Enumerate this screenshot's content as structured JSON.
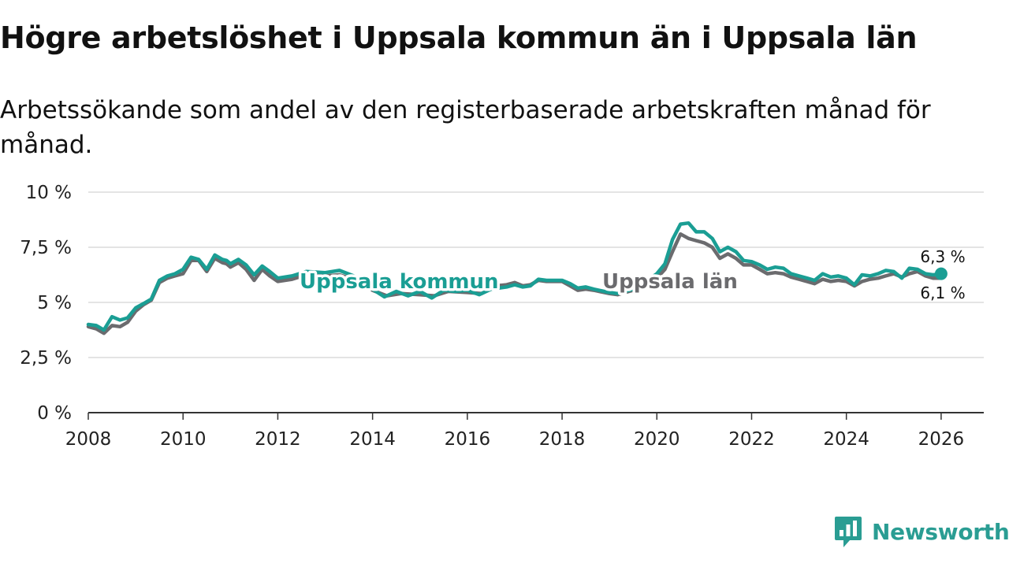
{
  "title": "Högre arbetslöshet i Uppsala kommun än i Uppsala län",
  "subtitle": "Arbetssökande som andel av den registerbaserade arbetskraften månad för månad.",
  "brand": {
    "name": "Newsworthy",
    "color": "#2a9d93",
    "icon": "chart-bubble-icon"
  },
  "colors": {
    "kommun": "#1a9e94",
    "lan": "#6b6b6e",
    "grid": "#dcdcdc",
    "axis": "#333333"
  },
  "chart_data": {
    "type": "line",
    "title": "Högre arbetslöshet i Uppsala kommun än i Uppsala län",
    "xlabel": "",
    "ylabel": "",
    "ylim": [
      0,
      10
    ],
    "xlim": [
      2008,
      2026.9
    ],
    "y_ticks": [
      0,
      2.5,
      5,
      7.5,
      10
    ],
    "y_tick_labels": [
      "0 %",
      "2,5 %",
      "5 %",
      "7,5 %",
      "10 %"
    ],
    "x_ticks": [
      2008,
      2010,
      2012,
      2014,
      2016,
      2018,
      2020,
      2022,
      2024,
      2026
    ],
    "x_tick_labels": [
      "2008",
      "2010",
      "2012",
      "2014",
      "2016",
      "2018",
      "2020",
      "2022",
      "2024",
      "2026"
    ],
    "grid": true,
    "legend": "inline",
    "series": [
      {
        "name": "Uppsala län",
        "color": "#6b6b6e",
        "label": "Uppsala län",
        "end_label": "6,1 %",
        "points": [
          [
            2008.0,
            3.9
          ],
          [
            2008.17,
            3.8
          ],
          [
            2008.33,
            3.6
          ],
          [
            2008.5,
            3.95
          ],
          [
            2008.67,
            3.9
          ],
          [
            2008.83,
            4.1
          ],
          [
            2009.0,
            4.6
          ],
          [
            2009.17,
            4.9
          ],
          [
            2009.33,
            5.1
          ],
          [
            2009.5,
            5.9
          ],
          [
            2009.67,
            6.1
          ],
          [
            2009.83,
            6.2
          ],
          [
            2010.0,
            6.3
          ],
          [
            2010.17,
            6.9
          ],
          [
            2010.33,
            6.9
          ],
          [
            2010.5,
            6.4
          ],
          [
            2010.67,
            7.0
          ],
          [
            2010.83,
            6.8
          ],
          [
            2010.92,
            6.75
          ],
          [
            2011.0,
            6.6
          ],
          [
            2011.17,
            6.8
          ],
          [
            2011.33,
            6.5
          ],
          [
            2011.5,
            6.0
          ],
          [
            2011.67,
            6.5
          ],
          [
            2011.83,
            6.2
          ],
          [
            2012.0,
            5.95
          ],
          [
            2012.3,
            6.05
          ],
          [
            2012.6,
            6.25
          ],
          [
            2013.0,
            6.2
          ],
          [
            2013.3,
            6.25
          ],
          [
            2013.6,
            6.05
          ],
          [
            2014.0,
            5.55
          ],
          [
            2014.3,
            5.3
          ],
          [
            2014.6,
            5.4
          ],
          [
            2015.0,
            5.35
          ],
          [
            2015.3,
            5.3
          ],
          [
            2015.6,
            5.5
          ],
          [
            2016.0,
            5.45
          ],
          [
            2016.3,
            5.4
          ],
          [
            2016.6,
            5.75
          ],
          [
            2016.83,
            5.8
          ],
          [
            2017.0,
            5.9
          ],
          [
            2017.17,
            5.75
          ],
          [
            2017.33,
            5.8
          ],
          [
            2017.5,
            6.0
          ],
          [
            2017.67,
            5.95
          ],
          [
            2018.0,
            5.95
          ],
          [
            2018.17,
            5.75
          ],
          [
            2018.33,
            5.55
          ],
          [
            2018.5,
            5.6
          ],
          [
            2018.67,
            5.55
          ],
          [
            2019.0,
            5.4
          ],
          [
            2019.17,
            5.35
          ],
          [
            2019.33,
            5.45
          ],
          [
            2019.5,
            5.55
          ],
          [
            2019.67,
            5.75
          ],
          [
            2020.0,
            6.1
          ],
          [
            2020.17,
            6.5
          ],
          [
            2020.33,
            7.3
          ],
          [
            2020.5,
            8.1
          ],
          [
            2020.67,
            7.9
          ],
          [
            2020.83,
            7.8
          ],
          [
            2021.0,
            7.7
          ],
          [
            2021.17,
            7.5
          ],
          [
            2021.33,
            7.0
          ],
          [
            2021.5,
            7.2
          ],
          [
            2021.67,
            7.0
          ],
          [
            2021.83,
            6.7
          ],
          [
            2022.0,
            6.7
          ],
          [
            2022.17,
            6.5
          ],
          [
            2022.33,
            6.3
          ],
          [
            2022.5,
            6.35
          ],
          [
            2022.67,
            6.3
          ],
          [
            2022.83,
            6.15
          ],
          [
            2023.0,
            6.05
          ],
          [
            2023.17,
            5.95
          ],
          [
            2023.33,
            5.85
          ],
          [
            2023.5,
            6.05
          ],
          [
            2023.67,
            5.95
          ],
          [
            2023.83,
            6.0
          ],
          [
            2024.0,
            5.95
          ],
          [
            2024.17,
            5.75
          ],
          [
            2024.33,
            5.95
          ],
          [
            2024.5,
            6.05
          ],
          [
            2024.67,
            6.1
          ],
          [
            2024.83,
            6.2
          ],
          [
            2025.0,
            6.3
          ],
          [
            2025.17,
            6.15
          ],
          [
            2025.33,
            6.3
          ],
          [
            2025.5,
            6.4
          ],
          [
            2025.67,
            6.2
          ],
          [
            2025.83,
            6.1
          ],
          [
            2026.0,
            6.1
          ]
        ]
      },
      {
        "name": "Uppsala kommun",
        "color": "#1a9e94",
        "label": "Uppsala kommun",
        "end_label": "6,3 %",
        "points": [
          [
            2008.0,
            4.0
          ],
          [
            2008.17,
            3.95
          ],
          [
            2008.33,
            3.75
          ],
          [
            2008.5,
            4.35
          ],
          [
            2008.67,
            4.2
          ],
          [
            2008.83,
            4.3
          ],
          [
            2009.0,
            4.75
          ],
          [
            2009.17,
            4.95
          ],
          [
            2009.33,
            5.15
          ],
          [
            2009.5,
            6.0
          ],
          [
            2009.67,
            6.2
          ],
          [
            2009.83,
            6.3
          ],
          [
            2010.0,
            6.5
          ],
          [
            2010.17,
            7.05
          ],
          [
            2010.33,
            6.95
          ],
          [
            2010.5,
            6.5
          ],
          [
            2010.67,
            7.15
          ],
          [
            2010.83,
            6.95
          ],
          [
            2010.92,
            6.9
          ],
          [
            2011.0,
            6.75
          ],
          [
            2011.17,
            6.95
          ],
          [
            2011.33,
            6.7
          ],
          [
            2011.5,
            6.25
          ],
          [
            2011.67,
            6.65
          ],
          [
            2011.83,
            6.4
          ],
          [
            2012.0,
            6.1
          ],
          [
            2012.3,
            6.2
          ],
          [
            2012.6,
            6.4
          ],
          [
            2013.0,
            6.35
          ],
          [
            2013.3,
            6.45
          ],
          [
            2013.6,
            6.2
          ],
          [
            2014.0,
            5.6
          ],
          [
            2014.25,
            5.25
          ],
          [
            2014.5,
            5.5
          ],
          [
            2014.75,
            5.3
          ],
          [
            2015.0,
            5.5
          ],
          [
            2015.25,
            5.2
          ],
          [
            2015.5,
            5.55
          ],
          [
            2015.75,
            5.5
          ],
          [
            2016.0,
            5.55
          ],
          [
            2016.25,
            5.35
          ],
          [
            2016.5,
            5.6
          ],
          [
            2016.67,
            5.65
          ],
          [
            2016.83,
            5.7
          ],
          [
            2017.0,
            5.8
          ],
          [
            2017.17,
            5.7
          ],
          [
            2017.33,
            5.75
          ],
          [
            2017.5,
            6.05
          ],
          [
            2017.67,
            6.0
          ],
          [
            2017.83,
            6.0
          ],
          [
            2018.0,
            6.0
          ],
          [
            2018.17,
            5.85
          ],
          [
            2018.33,
            5.65
          ],
          [
            2018.5,
            5.7
          ],
          [
            2018.67,
            5.6
          ],
          [
            2019.0,
            5.45
          ],
          [
            2019.17,
            5.4
          ],
          [
            2019.33,
            5.5
          ],
          [
            2019.5,
            5.6
          ],
          [
            2019.67,
            5.8
          ],
          [
            2020.0,
            6.3
          ],
          [
            2020.17,
            6.75
          ],
          [
            2020.33,
            7.85
          ],
          [
            2020.5,
            8.55
          ],
          [
            2020.67,
            8.6
          ],
          [
            2020.83,
            8.2
          ],
          [
            2021.0,
            8.2
          ],
          [
            2021.17,
            7.9
          ],
          [
            2021.33,
            7.3
          ],
          [
            2021.5,
            7.5
          ],
          [
            2021.67,
            7.3
          ],
          [
            2021.83,
            6.9
          ],
          [
            2022.0,
            6.85
          ],
          [
            2022.17,
            6.7
          ],
          [
            2022.33,
            6.5
          ],
          [
            2022.5,
            6.6
          ],
          [
            2022.67,
            6.55
          ],
          [
            2022.83,
            6.3
          ],
          [
            2023.0,
            6.2
          ],
          [
            2023.17,
            6.1
          ],
          [
            2023.33,
            6.0
          ],
          [
            2023.5,
            6.3
          ],
          [
            2023.67,
            6.15
          ],
          [
            2023.83,
            6.2
          ],
          [
            2024.0,
            6.1
          ],
          [
            2024.17,
            5.8
          ],
          [
            2024.33,
            6.25
          ],
          [
            2024.5,
            6.2
          ],
          [
            2024.67,
            6.3
          ],
          [
            2024.83,
            6.45
          ],
          [
            2025.0,
            6.4
          ],
          [
            2025.17,
            6.1
          ],
          [
            2025.33,
            6.55
          ],
          [
            2025.5,
            6.5
          ],
          [
            2025.67,
            6.3
          ],
          [
            2025.83,
            6.25
          ],
          [
            2026.0,
            6.3
          ]
        ]
      }
    ]
  }
}
